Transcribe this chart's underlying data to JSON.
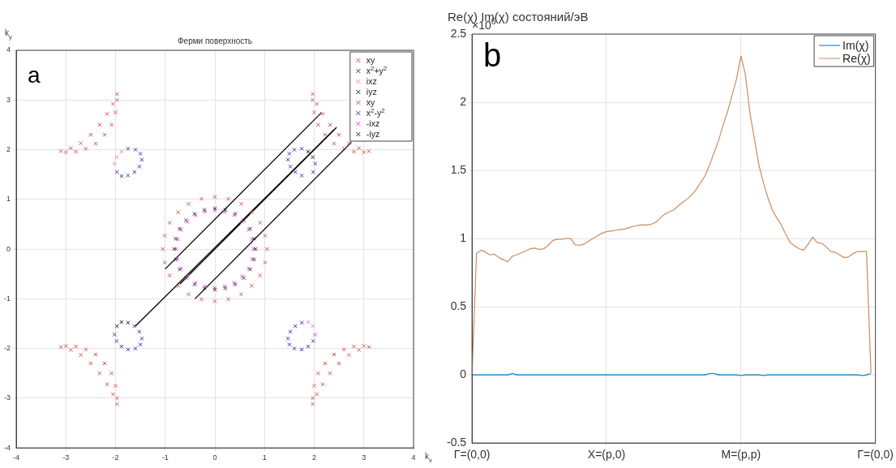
{
  "chart_data": [
    {
      "type": "scatter",
      "title": "Ферми поверхность",
      "xlabel": "k$_{x}$",
      "ylabel": "k$_{y}$",
      "annotations": [
        "a"
      ],
      "xlim": [
        -4,
        4
      ],
      "ylim": [
        -4,
        4
      ],
      "xticks": [
        -4,
        -3,
        -2,
        -1,
        0,
        1,
        2,
        3,
        4
      ],
      "yticks": [
        -4,
        -3,
        -2,
        -1,
        0,
        1,
        2,
        3,
        4
      ],
      "grid": true,
      "legend": "top right",
      "marker": "cross",
      "series": [
        {
          "name": "xy",
          "color": "#d9534f",
          "x": [
            1.05,
            1.01,
            0.91,
            0.74,
            0.53,
            0.27,
            0,
            -0.27,
            -0.53,
            -0.74,
            -0.91,
            -1.01,
            -1.05,
            -1.01,
            -0.91,
            -0.74,
            -0.53,
            -0.27,
            0,
            0.27,
            0.53,
            0.74,
            0.91,
            1.01
          ],
          "values": [
            0,
            0.27,
            0.53,
            0.74,
            0.91,
            1.01,
            1.05,
            1.01,
            0.91,
            0.74,
            0.53,
            0.27,
            0,
            -0.27,
            -0.53,
            -0.74,
            -0.91,
            -1.01,
            -1.05,
            -1.01,
            -0.91,
            -0.74,
            -0.53,
            -0.27
          ]
        },
        {
          "name": "x$^{2}$+y$^{2}$",
          "color": "#333333",
          "x": [
            0.82,
            0.79,
            0.71,
            0.58,
            0.41,
            0.21,
            0,
            -0.21,
            -0.41,
            -0.58,
            -0.71,
            -0.79,
            -0.82,
            -0.79,
            -0.71,
            -0.58,
            -0.41,
            -0.21,
            0,
            0.21,
            0.41,
            0.58,
            0.71,
            0.79
          ],
          "values": [
            0,
            0.21,
            0.41,
            0.58,
            0.71,
            0.79,
            0.82,
            0.79,
            0.71,
            0.58,
            0.41,
            0.21,
            0,
            -0.21,
            -0.41,
            -0.58,
            -0.71,
            -0.79,
            -0.82,
            -0.79,
            -0.71,
            -0.58,
            -0.41,
            -0.21
          ]
        },
        {
          "name": "ixz",
          "color": "#ee82c8",
          "x": [
            -2.02,
            -1.98,
            -1.88,
            1.97,
            1.88
          ],
          "values": [
            1.72,
            1.85,
            1.96,
            -1.55,
            -1.47
          ]
        },
        {
          "name": "iyz",
          "color": "#222222",
          "x": [
            -1.97,
            -1.88,
            -1.75
          ],
          "values": [
            -1.55,
            -1.47,
            -1.48
          ]
        },
        {
          "name": "xy",
          "color": "#d9534f",
          "x": [
            -3.1,
            -2.9,
            -2.7,
            -2.5,
            -2.32,
            -2.17,
            -2.05,
            -1.97,
            -3.0,
            -2.8,
            -2.6,
            -2.4,
            -2.22,
            -2.08,
            -2.0,
            -1.97,
            3.1,
            2.9,
            2.7,
            2.5,
            2.32,
            2.17,
            2.05,
            1.97,
            3.0,
            2.8,
            2.6,
            2.4,
            2.22,
            2.08,
            2.0,
            1.97,
            -3.1,
            -2.9,
            -2.7,
            -2.5,
            -2.32,
            -2.17,
            -2.05,
            -1.97,
            -3.0,
            -2.8,
            -2.6,
            -2.4,
            -2.22,
            -2.08,
            -2.0,
            -1.97,
            3.1,
            2.9,
            2.7,
            2.5,
            2.32,
            2.17,
            2.05,
            1.97,
            3.0,
            2.8,
            2.6,
            2.4,
            2.22,
            2.08,
            2.0,
            1.97
          ],
          "values": [
            1.97,
            2.03,
            2.13,
            2.3,
            2.5,
            2.72,
            2.92,
            3.12,
            1.95,
            1.96,
            2.02,
            2.12,
            2.3,
            2.5,
            2.75,
            3.0,
            1.97,
            2.03,
            2.13,
            2.3,
            2.5,
            2.72,
            2.92,
            3.12,
            1.95,
            1.96,
            2.02,
            2.12,
            2.3,
            2.5,
            2.75,
            3.0,
            -1.97,
            -2.03,
            -2.13,
            -2.3,
            -2.5,
            -2.72,
            -2.92,
            -3.12,
            -1.95,
            -1.96,
            -2.02,
            -2.12,
            -2.3,
            -2.5,
            -2.75,
            -3.0,
            -1.97,
            -2.03,
            -2.13,
            -2.3,
            -2.5,
            -2.72,
            -2.92,
            -3.12,
            -1.95,
            -1.96,
            -2.02,
            -2.12,
            -2.3,
            -2.5,
            -2.75,
            -3.0
          ]
        },
        {
          "name": "x$^{2}$-y$^{2}$",
          "color": "#3a3ab0",
          "x": [
            -1.75,
            -1.6,
            -1.5,
            -1.47,
            -1.52,
            -1.62,
            -1.75,
            -1.88,
            -1.97,
            1.75,
            1.6,
            1.5,
            1.47,
            1.52,
            1.62,
            1.75,
            2.02,
            1.98,
            -2.02,
            -1.98,
            -1.88,
            -1.75,
            -1.6,
            -1.5,
            -1.47,
            -1.52,
            -1.62,
            1.47,
            1.52,
            1.62,
            1.75,
            1.98,
            1.88,
            1.75,
            1.6,
            1.5
          ],
          "values": [
            2.02,
            2.0,
            1.92,
            1.8,
            1.66,
            1.55,
            1.48,
            1.47,
            1.55,
            2.02,
            2.0,
            1.92,
            1.8,
            1.66,
            1.55,
            1.48,
            1.72,
            1.55,
            -1.72,
            -1.85,
            -1.96,
            -2.02,
            -2.0,
            -1.92,
            -1.8,
            -1.66,
            -1.55,
            -1.8,
            -1.66,
            -1.55,
            -1.48,
            -1.85,
            -1.96,
            -2.02,
            -2.0,
            -1.92
          ]
        },
        {
          "name": "-ixz",
          "color": "#e040e0",
          "x": [
            0.78,
            0.75,
            0.68,
            0.55,
            0.39,
            0.2,
            0,
            -0.2,
            -0.39,
            -0.55,
            -0.68,
            -0.75,
            -0.78,
            -0.75,
            -0.68,
            -0.55,
            -0.39,
            -0.2,
            0,
            0.2,
            0.39,
            0.55,
            0.68,
            0.75,
            2.02
          ],
          "values": [
            0,
            0.2,
            0.39,
            0.55,
            0.68,
            0.75,
            0.78,
            0.75,
            0.68,
            0.55,
            0.39,
            0.2,
            0,
            -0.2,
            -0.39,
            -0.55,
            -0.68,
            -0.75,
            -0.78,
            -0.75,
            -0.68,
            -0.55,
            -0.39,
            -0.2,
            -1.72
          ]
        },
        {
          "name": "-iyz",
          "color": "#222222",
          "x": [
            1.88,
            1.97
          ],
          "values": [
            1.96,
            1.85
          ]
        },
        {
          "type": "line",
          "marker": "none",
          "color": "#000000",
          "x": [
            -1,
            2.15
          ],
          "values": [
            -0.4,
            2.75
          ]
        },
        {
          "type": "line",
          "marker": "none",
          "color": "#000000",
          "x": [
            -1.6,
            2.45
          ],
          "values": [
            -1.55,
            2.45
          ]
        },
        {
          "type": "line",
          "marker": "none",
          "color": "#000000",
          "x": [
            -0.7,
            2.4
          ],
          "values": [
            -0.7,
            2.4
          ]
        },
        {
          "type": "line",
          "marker": "none",
          "color": "#000000",
          "x": [
            -0.4,
            2.75
          ],
          "values": [
            -1,
            2.15
          ]
        }
      ]
    },
    {
      "type": "line",
      "title": "Re(χ) Im(χ) состояний/эВ",
      "annotations": [
        "b",
        "×10$^{6}$"
      ],
      "categories": [
        "Γ=(0,0)",
        null,
        null,
        null,
        null,
        null,
        null,
        null,
        null,
        null,
        null,
        null,
        null,
        null,
        null,
        null,
        null,
        null,
        null,
        null,
        null,
        null,
        null,
        null,
        null,
        null,
        null,
        null,
        null,
        null,
        "X=(p,0)",
        null,
        null,
        null,
        null,
        null,
        null,
        null,
        null,
        null,
        null,
        null,
        null,
        null,
        null,
        null,
        null,
        null,
        null,
        null,
        null,
        null,
        null,
        null,
        null,
        null,
        null,
        null,
        null,
        null,
        "M=(p,p)",
        null,
        null,
        null,
        null,
        null,
        null,
        null,
        null,
        null,
        null,
        null,
        null,
        null,
        null,
        null,
        null,
        null,
        null,
        null,
        null,
        null,
        null,
        null,
        null,
        null,
        null,
        null,
        null,
        null,
        "Γ=(0,0)"
      ],
      "ylim": [
        -0.5,
        2.5
      ],
      "yticks": [
        -0.5,
        0,
        0.5,
        1,
        1.5,
        2,
        2.5
      ],
      "grid": true,
      "legend": "top right",
      "series": [
        {
          "name": "Im(χ)",
          "color": "#0072bd",
          "values": [
            0,
            0,
            0,
            0,
            0,
            0,
            0,
            0,
            0,
            0.01,
            0,
            0,
            0,
            0,
            0,
            0,
            0,
            0,
            0,
            0,
            0,
            0,
            0,
            0,
            0,
            0,
            0,
            0,
            0,
            0,
            0,
            0,
            0,
            0,
            0,
            0,
            0,
            0,
            0,
            0,
            0,
            0,
            0,
            0,
            0,
            0,
            0,
            0,
            0,
            0,
            0,
            0,
            0,
            0.01,
            0.01,
            0,
            0,
            0,
            0,
            0,
            -0.005,
            0,
            0,
            0,
            0,
            -0.005,
            0,
            0,
            0,
            0,
            0,
            0,
            0,
            0,
            0,
            0,
            0,
            0,
            0,
            0,
            0,
            0,
            0,
            0,
            0,
            0,
            0,
            -0.005,
            0,
            0.01,
            null
          ]
        },
        {
          "name": "Re(χ)",
          "color": "#d08a5a",
          "values": [
            0,
            0.89,
            0.915,
            0.9,
            0.88,
            0.885,
            0.86,
            0.845,
            0.83,
            0.87,
            0.88,
            0.895,
            0.91,
            0.925,
            0.93,
            0.92,
            0.925,
            0.95,
            0.985,
            0.995,
            0.995,
            1.0,
            1.0,
            0.955,
            0.95,
            0.96,
            0.98,
            1.0,
            1.02,
            1.04,
            1.05,
            1.055,
            1.06,
            1.065,
            1.07,
            1.08,
            1.09,
            1.096,
            1.1,
            1.1,
            1.105,
            1.12,
            1.15,
            1.18,
            1.195,
            1.21,
            1.24,
            1.265,
            1.29,
            1.32,
            1.36,
            1.41,
            1.46,
            1.54,
            1.63,
            1.72,
            1.83,
            1.93,
            2.05,
            2.17,
            2.34,
            2.2,
            1.92,
            1.73,
            1.54,
            1.41,
            1.3,
            1.21,
            1.15,
            1.1,
            1.03,
            0.97,
            0.945,
            0.925,
            0.915,
            0.96,
            1.01,
            0.97,
            0.965,
            0.94,
            0.905,
            0.9,
            0.88,
            0.86,
            0.865,
            0.89,
            0.905,
            0.905,
            0.905,
            0.015,
            null
          ]
        }
      ]
    }
  ]
}
